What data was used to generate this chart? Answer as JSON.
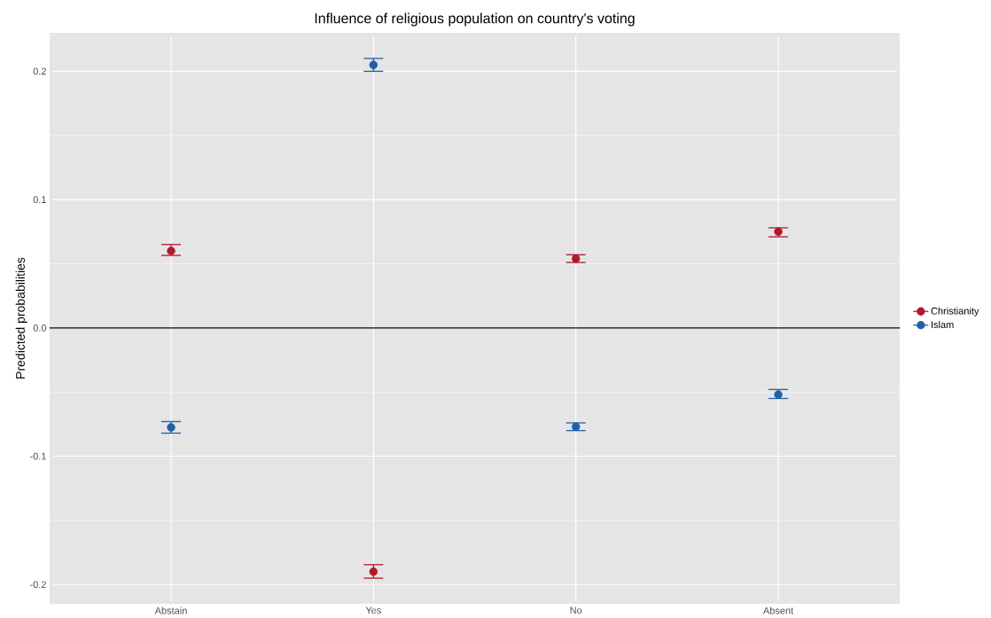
{
  "chart_data": {
    "type": "scatter",
    "title": "Influence of religious population on country's voting",
    "ylabel": "Predicted probabilities",
    "categories": [
      "Abstain",
      "Yes",
      "No",
      "Absent"
    ],
    "series": [
      {
        "name": "Christianity",
        "color": "#b2182b",
        "values": [
          0.06,
          -0.19,
          0.054,
          0.075
        ],
        "errors": [
          [
            0.0565,
            0.065
          ],
          [
            -0.195,
            -0.1845
          ],
          [
            0.051,
            0.057
          ],
          [
            0.071,
            0.078
          ]
        ]
      },
      {
        "name": "Islam",
        "color": "#2160a8",
        "values": [
          -0.0775,
          0.205,
          -0.077,
          -0.052
        ],
        "errors": [
          [
            -0.082,
            -0.073
          ],
          [
            0.2,
            0.21
          ],
          [
            -0.08,
            -0.074
          ],
          [
            -0.055,
            -0.048
          ]
        ]
      }
    ],
    "ylim": [
      -0.215,
      0.23
    ],
    "yticks": [
      -0.2,
      -0.1,
      {
        "value": 0,
        "label": "0.0"
      },
      0.1,
      0.2
    ],
    "grid": true,
    "legend": "right",
    "marker": "circle",
    "ref_lines": [
      {
        "axis": "y",
        "value": 0,
        "color": "#000000"
      }
    ]
  }
}
